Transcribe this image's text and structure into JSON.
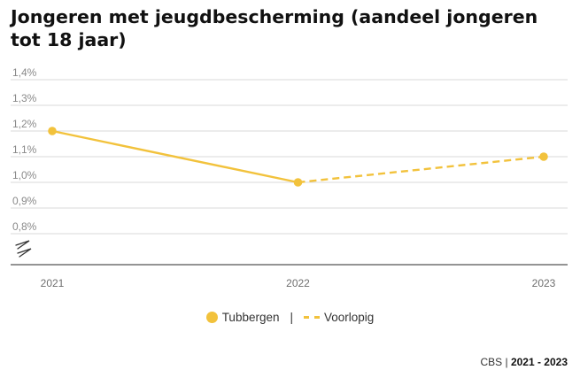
{
  "chart_data": {
    "type": "line",
    "title": "Jongeren met jeugdbescherming (aandeel jongeren tot 18 jaar)",
    "categories": [
      "2021",
      "2022",
      "2023"
    ],
    "y_ticks": [
      "1,4%",
      "1,3%",
      "1,2%",
      "1,1%",
      "1,0%",
      "0,9%",
      "0,8%"
    ],
    "y_tick_values": [
      1.4,
      1.3,
      1.2,
      1.1,
      1.0,
      0.9,
      0.8
    ],
    "ylim": [
      0.8,
      1.4
    ],
    "axis_break": true,
    "grid": true,
    "series": [
      {
        "name": "Tubbergen",
        "values": [
          1.2,
          1.0,
          1.1
        ],
        "color": "#f2c23c",
        "provisional_from_index": 1
      }
    ],
    "legend": {
      "placement": "bottom",
      "items": [
        "Tubbergen",
        "|",
        "Voorlopig"
      ]
    }
  },
  "source": {
    "label": "CBS",
    "separator": "|",
    "period": "2021 - 2023"
  }
}
